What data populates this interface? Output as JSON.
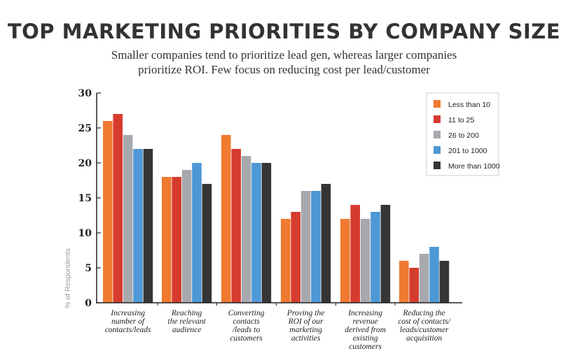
{
  "chart_data": {
    "type": "bar",
    "title": "TOP MARKETING PRIORITIES BY COMPANY SIZE",
    "subtitle_lines": [
      "Smaller companies tend to prioritize lead gen, whereas larger companies",
      "prioritize ROI. Few focus on reducing cost per lead/customer"
    ],
    "ylabel": "% of Respondents",
    "xlabel": "",
    "ylim": [
      0,
      30
    ],
    "yticks": [
      "0",
      "5",
      "10",
      "15",
      "20",
      "25",
      "30"
    ],
    "legend_position": "top-right",
    "grid": false,
    "categories": [
      [
        "Increasing",
        "number of",
        "contacts/leads"
      ],
      [
        "Reaching",
        "the relevant",
        "audience"
      ],
      [
        "Converting",
        "contacts",
        "/leads to",
        "customers"
      ],
      [
        "Proving the",
        "ROI of our",
        "marketing",
        "activities"
      ],
      [
        "Increasing",
        "revenue",
        "derived from",
        "existing",
        "customers"
      ],
      [
        "Reducing the",
        "cost of contacts/",
        "leads/customer",
        "acquisition"
      ]
    ],
    "series": [
      {
        "name": "Less than 10",
        "color": "#f07a30",
        "values": [
          26,
          18,
          24,
          12,
          12,
          6
        ]
      },
      {
        "name": "11 to 25",
        "color": "#d63c2e",
        "values": [
          27,
          18,
          22,
          13,
          14,
          5
        ]
      },
      {
        "name": "26 to 200",
        "color": "#a7a9ae",
        "values": [
          24,
          19,
          21,
          16,
          12,
          7
        ]
      },
      {
        "name": "201 to 1000",
        "color": "#4d98d5",
        "values": [
          22,
          20,
          20,
          16,
          13,
          8
        ]
      },
      {
        "name": "More than 1000",
        "color": "#353535",
        "values": [
          22,
          17,
          20,
          17,
          14,
          6
        ]
      }
    ]
  }
}
